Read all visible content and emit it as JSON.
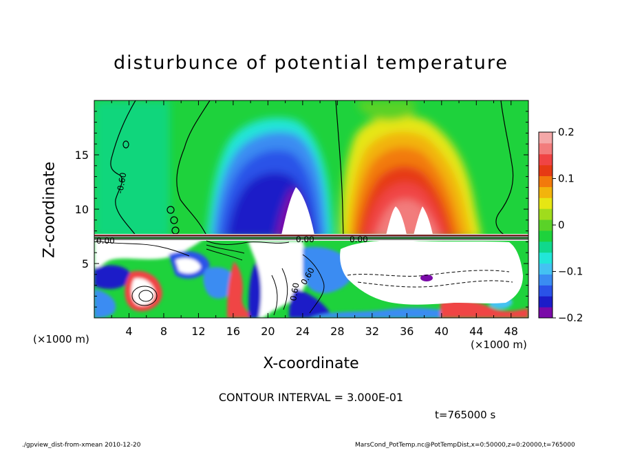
{
  "chart_data": {
    "type": "heatmap",
    "title": "disturbunce of potential temperature",
    "xlabel": "X-coordinate",
    "ylabel": "Z-coordinate",
    "x_unit_label": "(×1000 m)",
    "x_unit_label_right": "(×1000 m)",
    "xlim": [
      0,
      50
    ],
    "ylim": [
      0,
      20
    ],
    "x_ticks": [
      "4",
      "8",
      "12",
      "16",
      "20",
      "24",
      "28",
      "32",
      "36",
      "40",
      "44",
      "48"
    ],
    "y_ticks": [
      "5",
      "10",
      "15"
    ],
    "colorbar": {
      "range": [
        -0.2,
        0.2
      ],
      "ticks": [
        "0.2",
        "0.1",
        "0",
        "−0.1",
        "−0.2"
      ],
      "colors": [
        "#7a0aa8",
        "#1c1cc8",
        "#2a52e8",
        "#3a8cf2",
        "#44c2f2",
        "#22e6d8",
        "#10d88c",
        "#1ed23c",
        "#5ad228",
        "#a0dc1c",
        "#e6e614",
        "#f2b40c",
        "#f27a0c",
        "#e63a14",
        "#f04444",
        "#f27c7c",
        "#f4a8a8"
      ]
    },
    "contour_labels": [
      "-0.60",
      "0.60",
      "0.60",
      "0.00",
      "0.00",
      "0.00"
    ],
    "features": {
      "cold_anomaly": {
        "x": 24,
        "z": 12,
        "value": -0.2
      },
      "warm_anomaly": {
        "x": 35,
        "z": 12,
        "value": 0.2
      },
      "inversion_height": 7.5
    }
  },
  "annotations": {
    "contour_interval": "CONTOUR INTERVAL = 3.000E-01",
    "time": "t=765000 s",
    "footer_left": "./gpview_dist-from-xmean  2010-12-20",
    "footer_right": "MarsCond_PotTemp.nc@PotTempDist,x=0:50000,z=0:20000,t=765000"
  }
}
